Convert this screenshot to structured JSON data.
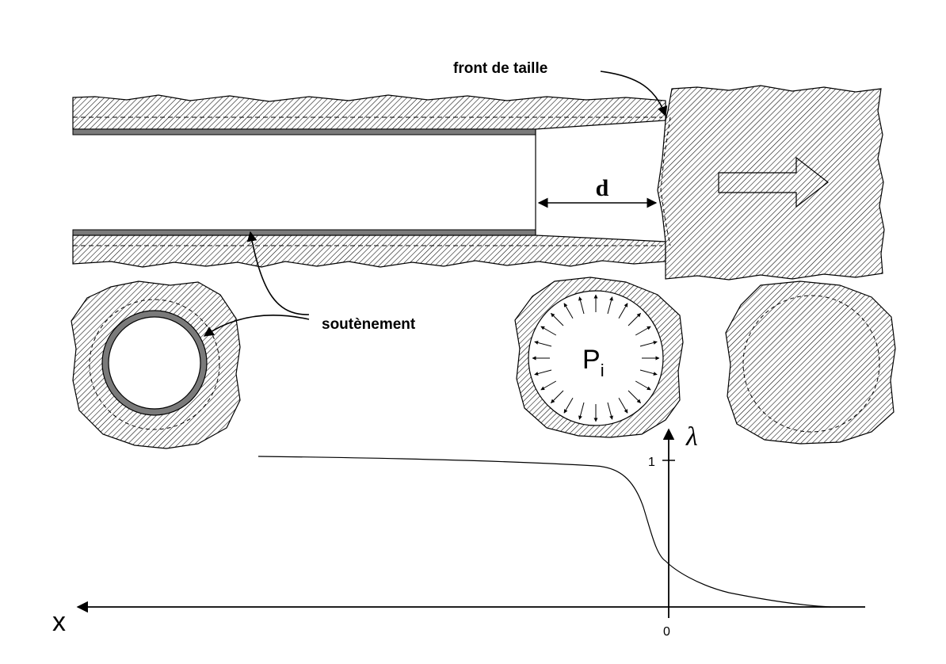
{
  "labels": {
    "face": "front de taille",
    "support": "soutènement",
    "distance": "d",
    "pressure_main": "P",
    "pressure_sub": "i"
  },
  "axis": {
    "x_label": "x",
    "y_label": "λ",
    "y_tick": "1",
    "origin": "0"
  },
  "colors": {
    "ink": "#000000",
    "lining": "#7a7a7a",
    "background": "#ffffff"
  }
}
